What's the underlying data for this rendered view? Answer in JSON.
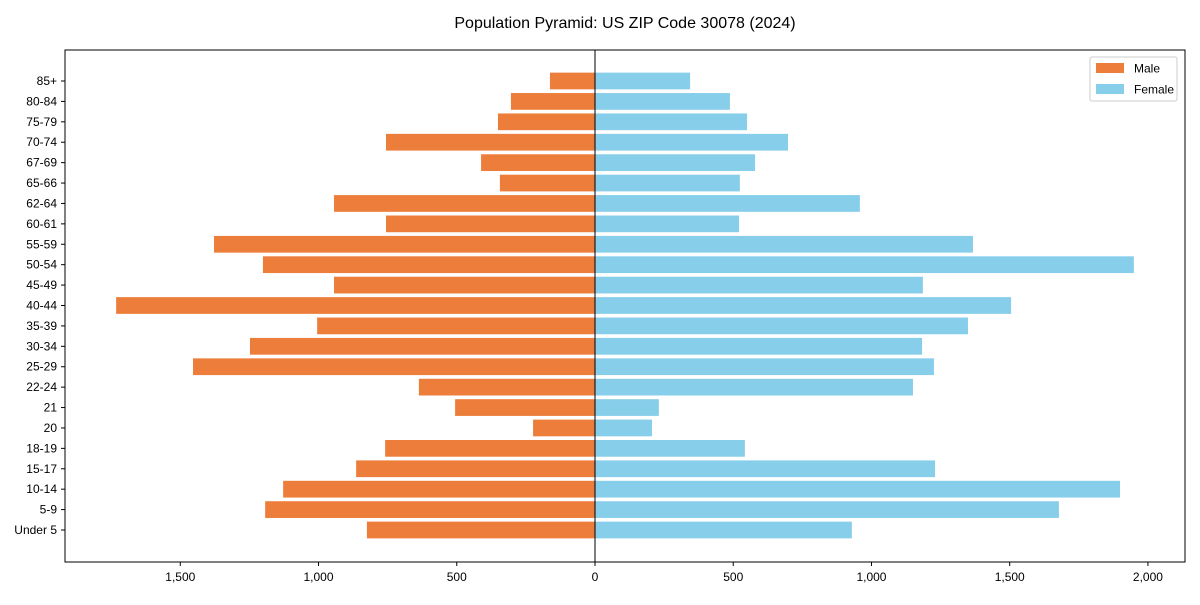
{
  "chart_data": {
    "type": "bar",
    "orientation": "horizontal-pyramid",
    "title": "Population Pyramid: US ZIP Code 30078 (2024)",
    "xlabel": "",
    "ylabel": "",
    "xlim": [
      -1917,
      2134
    ],
    "xticks": [
      -1500,
      -1000,
      -500,
      0,
      500,
      1000,
      1500,
      2000
    ],
    "xtick_labels": [
      "1,500",
      "1,000",
      "500",
      "0",
      "500",
      "1,000",
      "1,500",
      "2,000"
    ],
    "categories": [
      "85+",
      "80-84",
      "75-79",
      "70-74",
      "67-69",
      "65-66",
      "62-64",
      "60-61",
      "55-59",
      "50-54",
      "45-49",
      "40-44",
      "35-39",
      "30-34",
      "25-29",
      "22-24",
      "21",
      "20",
      "18-19",
      "15-17",
      "10-14",
      "5-9",
      "Under 5"
    ],
    "series": [
      {
        "name": "Male",
        "color": "#ED7D3A",
        "values": [
          163,
          304,
          351,
          756,
          412,
          344,
          944,
          756,
          1378,
          1201,
          944,
          1732,
          1005,
          1248,
          1454,
          637,
          506,
          224,
          759,
          864,
          1128,
          1193,
          825
        ]
      },
      {
        "name": "Female",
        "color": "#87CEEB",
        "values": [
          344,
          488,
          550,
          698,
          579,
          524,
          958,
          521,
          1367,
          1949,
          1186,
          1505,
          1349,
          1183,
          1226,
          1150,
          231,
          206,
          542,
          1230,
          1899,
          1678,
          929
        ]
      }
    ],
    "legend_position": "top-right",
    "grid": false
  }
}
